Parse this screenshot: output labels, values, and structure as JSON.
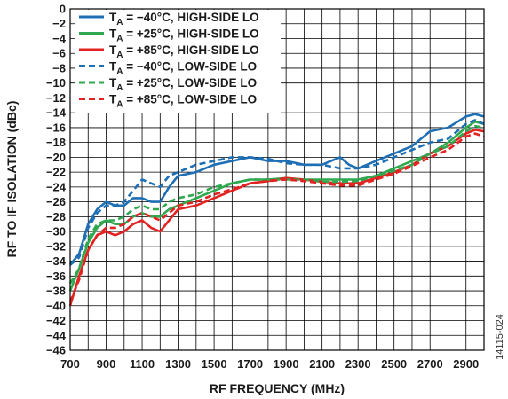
{
  "chart_data": {
    "type": "line",
    "title": "",
    "xlabel": "RF FREQUENCY (MHz)",
    "ylabel": "RF TO IF ISOLATION (dBc)",
    "xlim": [
      700,
      3000
    ],
    "ylim": [
      -46,
      0
    ],
    "xticks": [
      700,
      900,
      1100,
      1300,
      1500,
      1700,
      1900,
      2100,
      2300,
      2500,
      2700,
      2900
    ],
    "yticks": [
      0,
      -2,
      -4,
      -6,
      -8,
      -10,
      -12,
      -14,
      -16,
      -18,
      -20,
      -22,
      -24,
      -26,
      -28,
      -30,
      -32,
      -34,
      -36,
      -38,
      -40,
      -42,
      -44,
      -46
    ],
    "xtick_labels": [
      "700",
      "900",
      "1100",
      "1300",
      "1500",
      "1700",
      "1900",
      "2100",
      "2300",
      "2500",
      "2700",
      "2900"
    ],
    "ytick_labels": [
      "0",
      "−2",
      "−4",
      "−6",
      "−8",
      "−10",
      "−12",
      "−14",
      "−16",
      "−18",
      "−20",
      "−22",
      "−24",
      "−26",
      "−28",
      "−30",
      "−32",
      "−34",
      "−36",
      "−38",
      "−40",
      "−42",
      "−44",
      "−46"
    ],
    "grid": true,
    "legend_position": "top-left",
    "series": [
      {
        "label": {
          "main": "T",
          "sub": "A",
          "rest": " = −40°C, HIGH-SIDE LO"
        },
        "color": "#1f6fb5",
        "dash": "solid",
        "x": [
          700,
          750,
          800,
          850,
          900,
          950,
          1000,
          1050,
          1100,
          1150,
          1200,
          1250,
          1300,
          1400,
          1500,
          1600,
          1700,
          1800,
          1900,
          2000,
          2100,
          2150,
          2200,
          2250,
          2300,
          2400,
          2500,
          2600,
          2700,
          2800,
          2900,
          2950,
          3000
        ],
        "y": [
          -34.5,
          -33,
          -29,
          -27,
          -26,
          -26.5,
          -26.5,
          -25.5,
          -25.5,
          -26,
          -26,
          -24,
          -22.5,
          -22,
          -21,
          -20.5,
          -20,
          -20.5,
          -20.5,
          -21,
          -21,
          -20.5,
          -20,
          -21,
          -21.5,
          -20.5,
          -19.5,
          -18.5,
          -16.5,
          -16,
          -14.5,
          -14.2,
          -14.5
        ]
      },
      {
        "label": {
          "main": "T",
          "sub": "A",
          "rest": " = +25°C, HIGH-SIDE LO"
        },
        "color": "#2fa84f",
        "dash": "solid",
        "x": [
          700,
          750,
          800,
          850,
          900,
          950,
          1000,
          1050,
          1100,
          1150,
          1200,
          1250,
          1300,
          1400,
          1500,
          1600,
          1700,
          1800,
          1900,
          2000,
          2100,
          2200,
          2300,
          2400,
          2500,
          2600,
          2700,
          2800,
          2900,
          2950,
          3000
        ],
        "y": [
          -38,
          -35,
          -31.5,
          -29.5,
          -28.5,
          -29,
          -29,
          -28,
          -27.5,
          -28,
          -28,
          -27,
          -26.5,
          -25.5,
          -24.5,
          -23.5,
          -23,
          -23,
          -22.8,
          -23,
          -23,
          -23,
          -23,
          -22.5,
          -21.5,
          -20.5,
          -19.5,
          -18,
          -16,
          -15.2,
          -15.5
        ]
      },
      {
        "label": {
          "main": "T",
          "sub": "A",
          "rest": " = +85°C, HIGH-SIDE LO"
        },
        "color": "#e32322",
        "dash": "solid",
        "x": [
          700,
          750,
          800,
          850,
          900,
          950,
          1000,
          1050,
          1100,
          1150,
          1200,
          1250,
          1300,
          1400,
          1500,
          1600,
          1700,
          1800,
          1900,
          2000,
          2100,
          2200,
          2300,
          2400,
          2500,
          2600,
          2700,
          2800,
          2900,
          2950,
          3000
        ],
        "y": [
          -40,
          -36,
          -32.5,
          -30.5,
          -30,
          -30.5,
          -30,
          -29,
          -28.5,
          -29.5,
          -30,
          -28.5,
          -27,
          -26.5,
          -25.5,
          -24.5,
          -23.5,
          -23.2,
          -22.8,
          -23,
          -23.3,
          -23.5,
          -23.5,
          -22.8,
          -22,
          -21,
          -19.5,
          -18.5,
          -16.8,
          -16.3,
          -16.5
        ]
      },
      {
        "label": {
          "main": "T",
          "sub": "A",
          "rest": " = −40°C, LOW-SIDE LO"
        },
        "color": "#1f6fb5",
        "dash": "dashed",
        "x": [
          700,
          750,
          800,
          850,
          900,
          950,
          1000,
          1050,
          1100,
          1150,
          1200,
          1250,
          1300,
          1400,
          1500,
          1600,
          1700,
          1800,
          1900,
          2000,
          2100,
          2200,
          2300,
          2400,
          2500,
          2600,
          2700,
          2800,
          2900,
          2950,
          3000
        ],
        "y": [
          -34.5,
          -33.5,
          -29.5,
          -27.5,
          -26.5,
          -26.5,
          -26,
          -24.5,
          -23,
          -23.5,
          -24,
          -22.5,
          -22,
          -21,
          -20.5,
          -20,
          -20,
          -20.2,
          -20.8,
          -21,
          -21,
          -21.5,
          -21.5,
          -21,
          -20,
          -19,
          -18,
          -17.5,
          -15.5,
          -15,
          -15.5
        ]
      },
      {
        "label": {
          "main": "T",
          "sub": "A",
          "rest": " = +25°C, LOW-SIDE LO"
        },
        "color": "#2fa84f",
        "dash": "dashed",
        "x": [
          700,
          750,
          800,
          850,
          900,
          950,
          1000,
          1050,
          1100,
          1150,
          1200,
          1250,
          1300,
          1400,
          1500,
          1600,
          1700,
          1800,
          1900,
          2000,
          2100,
          2200,
          2300,
          2400,
          2500,
          2600,
          2700,
          2800,
          2900,
          2950,
          3000
        ],
        "y": [
          -37,
          -35,
          -31,
          -29,
          -28.5,
          -28.5,
          -28,
          -27,
          -26.5,
          -27,
          -27,
          -26,
          -25.5,
          -25,
          -24,
          -23.5,
          -23,
          -23,
          -23,
          -23,
          -23.3,
          -23.3,
          -23.2,
          -22.5,
          -21.8,
          -21,
          -19.5,
          -18.5,
          -16.5,
          -15.8,
          -16
        ]
      },
      {
        "label": {
          "main": "T",
          "sub": "A",
          "rest": " = +85°C, LOW-SIDE LO"
        },
        "color": "#e32322",
        "dash": "dashed",
        "x": [
          700,
          750,
          800,
          850,
          900,
          950,
          1000,
          1050,
          1100,
          1150,
          1200,
          1250,
          1300,
          1400,
          1500,
          1600,
          1700,
          1800,
          1900,
          2000,
          2100,
          2200,
          2300,
          2400,
          2500,
          2600,
          2700,
          2800,
          2900,
          2950,
          3000
        ],
        "y": [
          -39.5,
          -36.5,
          -32.5,
          -30.5,
          -29.5,
          -29.5,
          -29,
          -28,
          -27.5,
          -28,
          -28.5,
          -27.5,
          -26.5,
          -26,
          -25,
          -24.3,
          -23.5,
          -23.2,
          -23,
          -23.2,
          -23.5,
          -23.8,
          -23.8,
          -23,
          -22.2,
          -21.2,
          -20,
          -19,
          -17.2,
          -16.8,
          -17.2
        ]
      }
    ],
    "figure_id": "14115-024"
  }
}
